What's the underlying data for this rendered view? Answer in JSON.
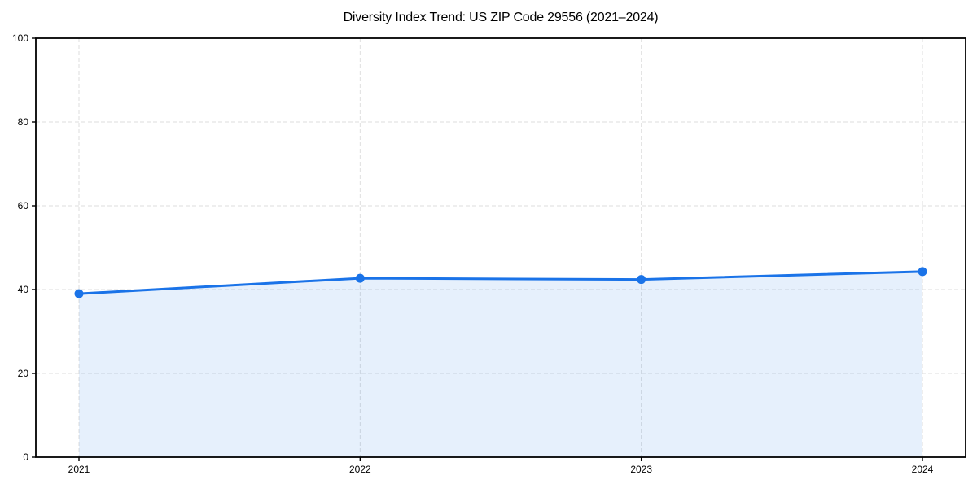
{
  "chart_data": {
    "type": "area",
    "title": "Diversity Index Trend: US ZIP Code 29556 (2021–2024)",
    "x": [
      "2021",
      "2022",
      "2023",
      "2024"
    ],
    "series": [
      {
        "name": "Diversity Index",
        "values": [
          39.0,
          42.7,
          42.4,
          44.3
        ]
      }
    ],
    "xlabel": "",
    "ylabel": "",
    "ylim": [
      0,
      100
    ],
    "yticks": [
      0,
      20,
      40,
      60,
      80,
      100
    ],
    "grid": "dashed-both-axes",
    "legend": "none",
    "marker": "circle",
    "colors": {
      "line": "#1a73e8",
      "fill": "#1a73e8",
      "fill_opacity": "0.11",
      "grid": "#dedede",
      "axis": "#000000",
      "text": "#000000",
      "background": "#ffffff"
    }
  }
}
